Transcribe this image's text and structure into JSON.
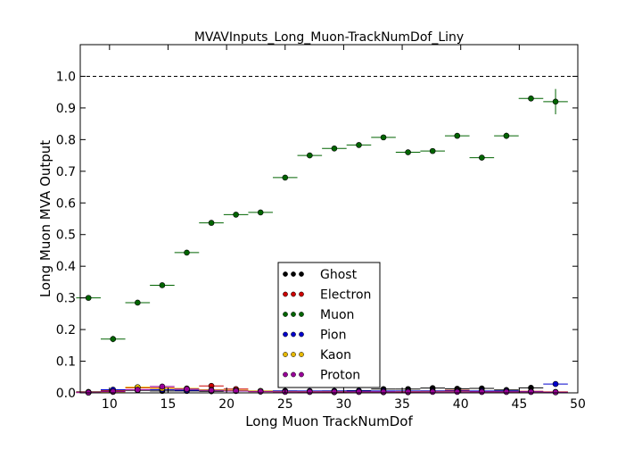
{
  "chart_data": {
    "type": "scatter",
    "title": "MVAVInputs_Long_Muon-TrackNumDof_Liny",
    "xlabel": "Long Muon TrackNumDof",
    "ylabel": "Long Muon MVA Output",
    "xlim": [
      7.5,
      50
    ],
    "ylim": [
      0,
      1.1
    ],
    "xticks": [
      "10",
      "15",
      "20",
      "25",
      "30",
      "35",
      "40",
      "45",
      "50"
    ],
    "yticks": [
      "0.0",
      "0.1",
      "0.2",
      "0.3",
      "0.4",
      "0.5",
      "0.6",
      "0.7",
      "0.8",
      "0.9",
      "1.0"
    ],
    "reference_line": 1.0,
    "grid": false,
    "legend_position": "lower-center",
    "bin_width": 2.1,
    "x": [
      8.2,
      10.3,
      12.4,
      14.5,
      16.6,
      18.7,
      20.8,
      22.9,
      25.0,
      27.1,
      29.2,
      31.3,
      33.4,
      35.5,
      37.6,
      39.7,
      41.8,
      43.9,
      46.0,
      48.1
    ],
    "series": [
      {
        "name": "Ghost",
        "color": "#000000",
        "values": [
          0.003,
          0.005,
          0.008,
          0.006,
          0.006,
          0.005,
          0.007,
          0.005,
          0.006,
          0.004,
          0.006,
          0.007,
          0.012,
          0.012,
          0.015,
          0.013,
          0.014,
          0.009,
          0.016,
          0.002
        ]
      },
      {
        "name": "Electron",
        "color": "#cc0000",
        "values": [
          0.002,
          0.008,
          0.016,
          0.016,
          0.012,
          0.022,
          0.012,
          0.004,
          0.004,
          0.003,
          0.002,
          0.004,
          0.002,
          0.002,
          0.006,
          0.008,
          0.005,
          0.004,
          0.005,
          0.003
        ]
      },
      {
        "name": "Muon",
        "color": "#006400",
        "values": [
          0.3,
          0.17,
          0.285,
          0.34,
          0.443,
          0.537,
          0.563,
          0.57,
          0.68,
          0.75,
          0.772,
          0.783,
          0.807,
          0.76,
          0.764,
          0.812,
          0.743,
          0.812,
          0.93,
          0.92
        ],
        "errors": [
          0.004,
          0.01,
          0.005,
          0.005,
          0.004,
          0.004,
          0.004,
          0.004,
          0.004,
          0.004,
          0.004,
          0.004,
          0.004,
          0.004,
          0.004,
          0.004,
          0.004,
          0.01,
          0.006,
          0.04
        ]
      },
      {
        "name": "Pion",
        "color": "#0000cc",
        "values": [
          0.001,
          0.01,
          0.01,
          0.01,
          0.008,
          0.008,
          0.006,
          0.006,
          0.006,
          0.006,
          0.006,
          0.006,
          0.006,
          0.006,
          0.006,
          0.006,
          0.006,
          0.006,
          0.004,
          0.028
        ]
      },
      {
        "name": "Kaon",
        "color": "#e6b800",
        "values": [
          0.001,
          0.003,
          0.018,
          0.014,
          0.014,
          0.01,
          0.008,
          0.006,
          0.004,
          0.004,
          0.004,
          0.003,
          0.003,
          0.004,
          0.004,
          0.004,
          0.003,
          0.003,
          0.003,
          0.002
        ]
      },
      {
        "name": "Proton",
        "color": "#990099",
        "values": [
          0.001,
          0.004,
          0.01,
          0.02,
          0.012,
          0.008,
          0.006,
          0.004,
          0.003,
          0.003,
          0.003,
          0.003,
          0.003,
          0.003,
          0.003,
          0.003,
          0.003,
          0.003,
          0.003,
          0.002
        ]
      }
    ]
  }
}
